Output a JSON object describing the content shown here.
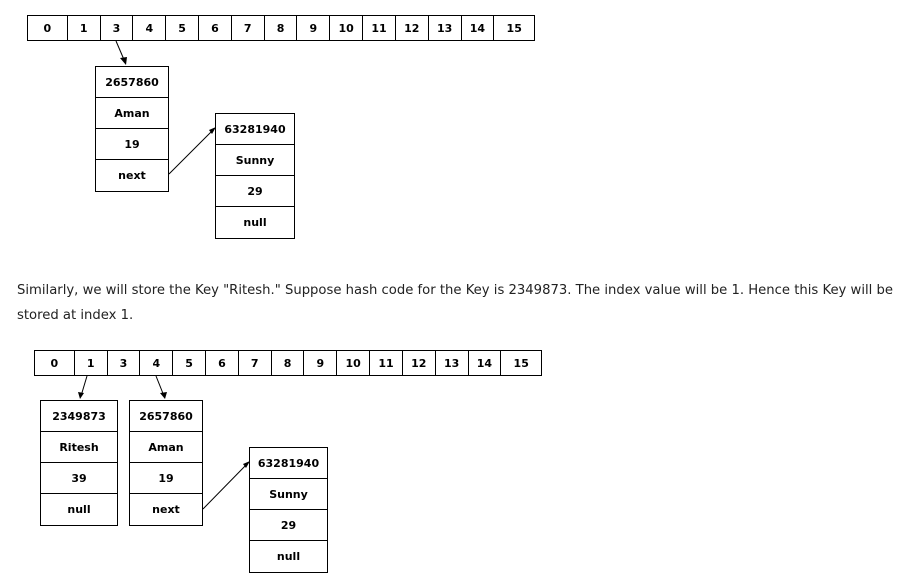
{
  "diagram1": {
    "indices": [
      "0",
      "1",
      "3",
      "4",
      "5",
      "6",
      "7",
      "8",
      "9",
      "10",
      "11",
      "12",
      "13",
      "14",
      "15"
    ],
    "node_aman": [
      "2657860",
      "Aman",
      "19",
      "next"
    ],
    "node_sunny": [
      "63281940",
      "Sunny",
      "29",
      "null"
    ]
  },
  "paragraph": "Similarly, we will store the Key \"Ritesh.\" Suppose hash code for the Key is 2349873. The index value will be 1. Hence this Key will be stored at index 1.",
  "diagram2": {
    "indices": [
      "0",
      "1",
      "3",
      "4",
      "5",
      "6",
      "7",
      "8",
      "9",
      "10",
      "11",
      "12",
      "13",
      "14",
      "15"
    ],
    "node_ritesh": [
      "2349873",
      "Ritesh",
      "39",
      "null"
    ],
    "node_aman": [
      "2657860",
      "Aman",
      "19",
      "next"
    ],
    "node_sunny": [
      "63281940",
      "Sunny",
      "29",
      "null"
    ]
  }
}
